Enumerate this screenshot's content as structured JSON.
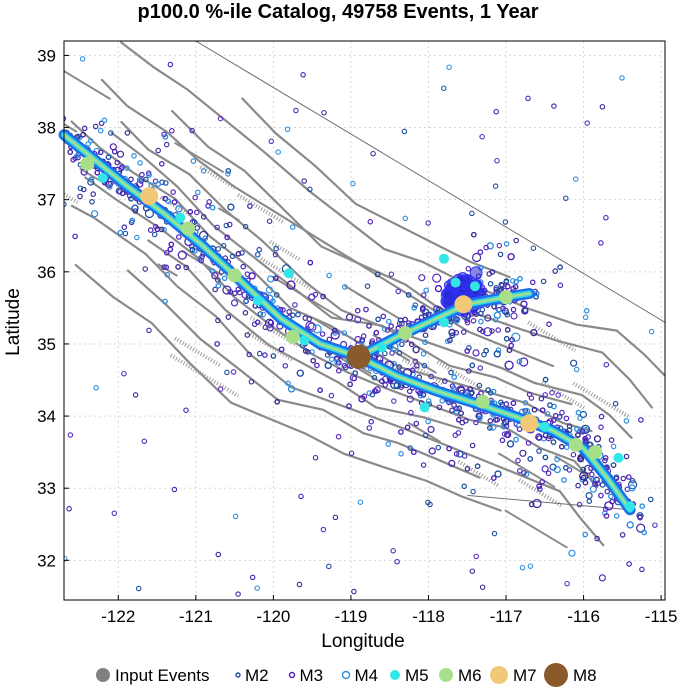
{
  "chart_data": {
    "type": "scatter",
    "title": "p100.0 %-ile Catalog, 49758 Events, 1 Year",
    "xlabel": "Longitude",
    "ylabel": "Latitude",
    "xlim": [
      -122.7,
      -114.95
    ],
    "ylim": [
      31.45,
      39.2
    ],
    "x_ticks": [
      -122,
      -121,
      -120,
      -119,
      -118,
      -117,
      -116,
      -115
    ],
    "y_ticks": [
      32,
      33,
      34,
      35,
      36,
      37,
      38,
      39
    ],
    "grid": true,
    "legend": {
      "placement": "bottom",
      "entries": [
        {
          "label": "Input Events",
          "color": "#808080",
          "style": "filled"
        },
        {
          "label": "M2",
          "color": "#1f4fa0",
          "style": "ring"
        },
        {
          "label": "M3",
          "color": "#4b1fb8",
          "style": "ring"
        },
        {
          "label": "M4",
          "color": "#2f8fe0",
          "style": "ring"
        },
        {
          "label": "M5",
          "color": "#33e6e6",
          "style": "filled"
        },
        {
          "label": "M6",
          "color": "#a8e08a",
          "style": "filled"
        },
        {
          "label": "M7",
          "color": "#f0c878",
          "style": "filled"
        },
        {
          "label": "M8",
          "color": "#8b5a2b",
          "style": "filled"
        }
      ]
    },
    "input_events_trace": [
      [
        -122.7,
        37.9
      ],
      [
        -122.3,
        37.55
      ],
      [
        -121.9,
        37.2
      ],
      [
        -121.4,
        36.8
      ],
      [
        -120.9,
        36.35
      ],
      [
        -120.4,
        35.85
      ],
      [
        -119.9,
        35.35
      ],
      [
        -119.4,
        35.0
      ],
      [
        -118.9,
        34.82
      ],
      [
        -118.4,
        34.55
      ],
      [
        -117.9,
        34.35
      ],
      [
        -117.4,
        34.18
      ],
      [
        -116.9,
        34.0
      ],
      [
        -116.4,
        33.8
      ],
      [
        -116.0,
        33.55
      ],
      [
        -115.7,
        33.15
      ],
      [
        -115.4,
        32.7
      ]
    ],
    "input_events_branch": [
      [
        -118.9,
        34.82
      ],
      [
        -118.4,
        35.1
      ],
      [
        -117.9,
        35.35
      ],
      [
        -117.5,
        35.55
      ],
      [
        -117.0,
        35.65
      ],
      [
        -116.7,
        35.7
      ]
    ],
    "large_events": [
      {
        "mag": "M8",
        "lon": -118.9,
        "lat": 34.82
      },
      {
        "mag": "M7",
        "lon": -117.55,
        "lat": 35.55
      },
      {
        "mag": "M7",
        "lon": -121.6,
        "lat": 37.05
      },
      {
        "mag": "M7",
        "lon": -116.7,
        "lat": 33.9
      },
      {
        "mag": "M6",
        "lon": -122.4,
        "lat": 37.5
      },
      {
        "mag": "M6",
        "lon": -121.1,
        "lat": 36.6
      },
      {
        "mag": "M6",
        "lon": -120.5,
        "lat": 35.95
      },
      {
        "mag": "M6",
        "lon": -119.75,
        "lat": 35.1
      },
      {
        "mag": "M6",
        "lon": -117.3,
        "lat": 34.2
      },
      {
        "mag": "M6",
        "lon": -116.1,
        "lat": 33.6
      },
      {
        "mag": "M6",
        "lon": -115.85,
        "lat": 33.5
      },
      {
        "mag": "M6",
        "lon": -117.0,
        "lat": 35.65
      },
      {
        "mag": "M6",
        "lon": -118.3,
        "lat": 35.15
      },
      {
        "mag": "M5",
        "lon": -119.8,
        "lat": 35.98
      },
      {
        "mag": "M5",
        "lon": -117.8,
        "lat": 36.18
      },
      {
        "mag": "M5",
        "lon": -118.05,
        "lat": 34.12
      },
      {
        "mag": "M5",
        "lon": -115.55,
        "lat": 33.42
      },
      {
        "mag": "M5",
        "lon": -121.2,
        "lat": 36.75
      },
      {
        "mag": "M5",
        "lon": -122.2,
        "lat": 37.3
      },
      {
        "mag": "M5",
        "lon": -117.65,
        "lat": 35.85
      },
      {
        "mag": "M5",
        "lon": -117.4,
        "lat": 35.8
      },
      {
        "mag": "M5",
        "lon": -119.6,
        "lat": 35.05
      },
      {
        "mag": "M5",
        "lon": -118.6,
        "lat": 34.95
      },
      {
        "mag": "M5",
        "lon": -117.8,
        "lat": 35.3
      },
      {
        "mag": "M5",
        "lon": -116.5,
        "lat": 33.85
      },
      {
        "mag": "M5",
        "lon": -115.4,
        "lat": 32.75
      },
      {
        "mag": "M5",
        "lon": -120.2,
        "lat": 35.6
      }
    ],
    "background_events_description_free": true
  }
}
